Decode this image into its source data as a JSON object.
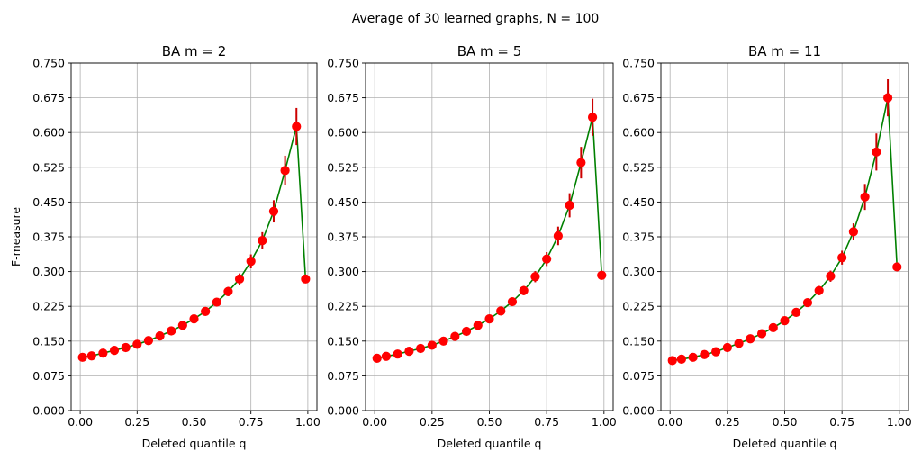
{
  "figure": {
    "suptitle": "Average of 30 learned graphs, N = 100"
  },
  "chart_data": [
    {
      "type": "line",
      "title": "BA m = 2",
      "xlabel": "Deleted quantile q",
      "ylabel": "F-measure",
      "xlim": [
        -0.04,
        1.04
      ],
      "ylim": [
        0,
        0.75
      ],
      "xticks": [
        "0.00",
        "0.25",
        "0.50",
        "0.75",
        "1.00"
      ],
      "yticks": [
        "0.000",
        "0.075",
        "0.150",
        "0.225",
        "0.300",
        "0.375",
        "0.450",
        "0.525",
        "0.600",
        "0.675",
        "0.750"
      ],
      "grid": true,
      "line_color": "#008000",
      "marker_color": "#ff0000",
      "errorbar_color": "#cc0000",
      "x": [
        0.01,
        0.05,
        0.1,
        0.15,
        0.2,
        0.25,
        0.3,
        0.35,
        0.4,
        0.45,
        0.5,
        0.55,
        0.6,
        0.65,
        0.7,
        0.75,
        0.8,
        0.85,
        0.9,
        0.95,
        0.99
      ],
      "y": [
        0.115,
        0.118,
        0.124,
        0.13,
        0.136,
        0.143,
        0.151,
        0.161,
        0.172,
        0.184,
        0.198,
        0.214,
        0.234,
        0.257,
        0.284,
        0.322,
        0.367,
        0.43,
        0.518,
        0.613,
        0.284
      ],
      "err": [
        0.004,
        0.004,
        0.004,
        0.004,
        0.004,
        0.004,
        0.005,
        0.005,
        0.005,
        0.006,
        0.006,
        0.007,
        0.008,
        0.01,
        0.012,
        0.015,
        0.018,
        0.024,
        0.032,
        0.04,
        0.005
      ]
    },
    {
      "type": "line",
      "title": "BA m = 5",
      "xlabel": "Deleted quantile q",
      "ylabel": "",
      "xlim": [
        -0.04,
        1.04
      ],
      "ylim": [
        0,
        0.75
      ],
      "xticks": [
        "0.00",
        "0.25",
        "0.50",
        "0.75",
        "1.00"
      ],
      "yticks": [
        "0.000",
        "0.075",
        "0.150",
        "0.225",
        "0.300",
        "0.375",
        "0.450",
        "0.525",
        "0.600",
        "0.675",
        "0.750"
      ],
      "grid": true,
      "line_color": "#008000",
      "marker_color": "#ff0000",
      "errorbar_color": "#cc0000",
      "x": [
        0.01,
        0.05,
        0.1,
        0.15,
        0.2,
        0.25,
        0.3,
        0.35,
        0.4,
        0.45,
        0.5,
        0.55,
        0.6,
        0.65,
        0.7,
        0.75,
        0.8,
        0.85,
        0.9,
        0.95,
        0.99
      ],
      "y": [
        0.113,
        0.117,
        0.122,
        0.128,
        0.134,
        0.141,
        0.15,
        0.16,
        0.171,
        0.184,
        0.198,
        0.215,
        0.235,
        0.259,
        0.289,
        0.327,
        0.377,
        0.443,
        0.535,
        0.633,
        0.292
      ],
      "err": [
        0.004,
        0.004,
        0.004,
        0.004,
        0.004,
        0.004,
        0.005,
        0.005,
        0.005,
        0.006,
        0.006,
        0.007,
        0.008,
        0.01,
        0.012,
        0.015,
        0.02,
        0.026,
        0.034,
        0.04,
        0.005
      ]
    },
    {
      "type": "line",
      "title": "BA m = 11",
      "xlabel": "Deleted quantile q",
      "ylabel": "",
      "xlim": [
        -0.04,
        1.04
      ],
      "ylim": [
        0,
        0.75
      ],
      "xticks": [
        "0.00",
        "0.25",
        "0.50",
        "0.75",
        "1.00"
      ],
      "yticks": [
        "0.000",
        "0.075",
        "0.150",
        "0.225",
        "0.300",
        "0.375",
        "0.450",
        "0.525",
        "0.600",
        "0.675",
        "0.750"
      ],
      "grid": true,
      "line_color": "#008000",
      "marker_color": "#ff0000",
      "errorbar_color": "#cc0000",
      "x": [
        0.01,
        0.05,
        0.1,
        0.15,
        0.2,
        0.25,
        0.3,
        0.35,
        0.4,
        0.45,
        0.5,
        0.55,
        0.6,
        0.65,
        0.7,
        0.75,
        0.8,
        0.85,
        0.9,
        0.95,
        0.99
      ],
      "y": [
        0.108,
        0.111,
        0.115,
        0.121,
        0.127,
        0.136,
        0.145,
        0.155,
        0.166,
        0.179,
        0.194,
        0.212,
        0.233,
        0.259,
        0.29,
        0.33,
        0.386,
        0.461,
        0.558,
        0.675,
        0.31
      ],
      "err": [
        0.004,
        0.004,
        0.004,
        0.004,
        0.004,
        0.004,
        0.005,
        0.005,
        0.005,
        0.006,
        0.006,
        0.007,
        0.008,
        0.01,
        0.012,
        0.015,
        0.018,
        0.028,
        0.04,
        0.04,
        0.005
      ]
    }
  ]
}
